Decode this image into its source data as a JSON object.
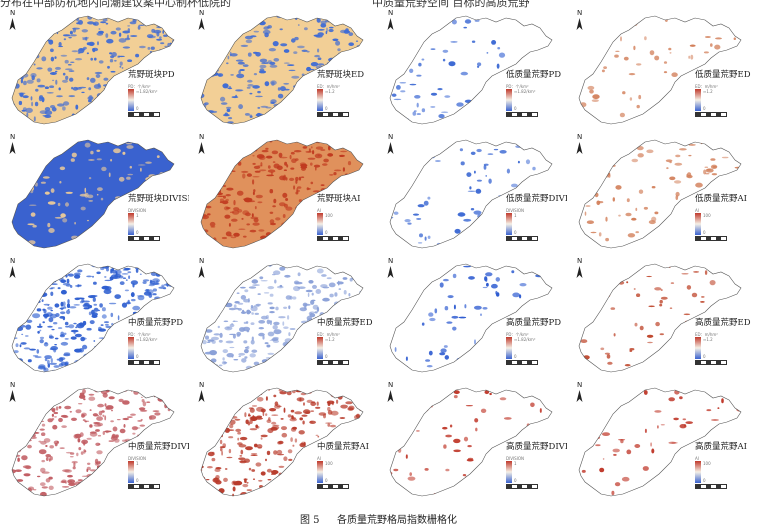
{
  "header_line": {
    "left": "分布在中部防杭地内同潮建议案中心制杯低院的",
    "right": "中质量荒野空间 目标的高质荒野"
  },
  "panels": [
    {
      "title": "荒野斑块PD",
      "unit": "PD：个/km²",
      "hi": "≈1.82/km²",
      "lo": "0",
      "bg": "#f2cf96",
      "patch": "#3f6bd4",
      "density": 0.45,
      "ramp": "blue-red",
      "fill_level": 1.0
    },
    {
      "title": "荒野斑块ED",
      "unit": "ED：m/hm²",
      "hi": "≈1.2",
      "lo": "0",
      "bg": "#f2cf96",
      "patch": "#3f6bd4",
      "density": 0.35,
      "ramp": "blue-red",
      "fill_level": 1.0
    },
    {
      "title": "低质量荒野PD",
      "unit": "PD：个/km²",
      "hi": "≈1.82/km²",
      "lo": "0",
      "bg": "#ffffff",
      "patch": "#3f6bd4",
      "density": 0.1,
      "ramp": "blue-red",
      "fill_level": 0.2
    },
    {
      "title": "低质量荒野ED",
      "unit": "ED：m/hm²",
      "hi": "≈1.2",
      "lo": "0",
      "bg": "#ffffff",
      "patch": "#d27f5a",
      "density": 0.1,
      "ramp": "blue-red",
      "fill_level": 0.2
    },
    {
      "title": "荒野斑块DIVISION",
      "unit": "DIVISION",
      "hi": "1",
      "lo": "0",
      "bg": "#3a62cf",
      "patch": "#e8c89a",
      "density": 0.15,
      "ramp": "blue-red",
      "fill_level": 1.0
    },
    {
      "title": "荒野斑块AI",
      "unit": "AI",
      "hi": "100",
      "lo": "0",
      "bg": "#e0915c",
      "patch": "#c03a1f",
      "density": 0.45,
      "ramp": "blue-red",
      "fill_level": 1.0
    },
    {
      "title": "低质量荒野DIVISION",
      "unit": "DIVISION",
      "hi": "1",
      "lo": "0",
      "bg": "#ffffff",
      "patch": "#3f6bd4",
      "density": 0.14,
      "ramp": "blue-red",
      "fill_level": 0.25
    },
    {
      "title": "低质量荒野AI",
      "unit": "AI",
      "hi": "100",
      "lo": "0",
      "bg": "#ffffff",
      "patch": "#d27f5a",
      "density": 0.14,
      "ramp": "blue-red",
      "fill_level": 0.25
    },
    {
      "title": "中质量荒野PD",
      "unit": "PD：个/km²",
      "hi": "≈1.82/km²",
      "lo": "0",
      "bg": "#ffffff",
      "patch": "#2f5fd0",
      "density": 0.55,
      "ramp": "blue-red",
      "fill_level": 0.6
    },
    {
      "title": "中质量荒野ED",
      "unit": "ED：m/hm²",
      "hi": "≈1.2",
      "lo": "0",
      "bg": "#ffffff",
      "patch": "#8aa0d8",
      "density": 0.45,
      "ramp": "blue-red",
      "fill_level": 0.6
    },
    {
      "title": "高质量荒野PD",
      "unit": "PD：个/km²",
      "hi": "≈1.82/km²",
      "lo": "0",
      "bg": "#ffffff",
      "patch": "#2c5ad0",
      "density": 0.12,
      "ramp": "blue-red",
      "fill_level": 0.35
    },
    {
      "title": "高质量荒野ED",
      "unit": "ED：m/hm²",
      "hi": "≈1.2",
      "lo": "0",
      "bg": "#ffffff",
      "patch": "#c04a30",
      "density": 0.1,
      "ramp": "blue-red",
      "fill_level": 0.35
    },
    {
      "title": "中质量荒野DIVISION",
      "unit": "DIVISION",
      "hi": "1",
      "lo": "0",
      "bg": "#ffffff",
      "patch": "#c05a60",
      "density": 0.45,
      "ramp": "blue-red",
      "fill_level": 0.6
    },
    {
      "title": "中质量荒野AI",
      "unit": "AI",
      "hi": "100",
      "lo": "0",
      "bg": "#ffffff",
      "patch": "#b83a2a",
      "density": 0.5,
      "ramp": "blue-red",
      "fill_level": 0.6
    },
    {
      "title": "高质量荒野DIVISION",
      "unit": "DIVISION",
      "hi": "1",
      "lo": "0",
      "bg": "#ffffff",
      "patch": "#c0392b",
      "density": 0.1,
      "ramp": "blue-red",
      "fill_level": 0.35
    },
    {
      "title": "高质量荒野AI",
      "unit": "AI",
      "hi": "100",
      "lo": "0",
      "bg": "#ffffff",
      "patch": "#c0392b",
      "density": 0.1,
      "ramp": "blue-red",
      "fill_level": 0.35
    }
  ],
  "north_label": "N",
  "caption": {
    "figure_no": "图 5",
    "text": "各质量荒野格局指数栅格化"
  },
  "colors": {
    "ramp_high": "#c0392b",
    "ramp_mid": "#f5f0e6",
    "ramp_low": "#3a62cf",
    "outline": "#555555"
  }
}
